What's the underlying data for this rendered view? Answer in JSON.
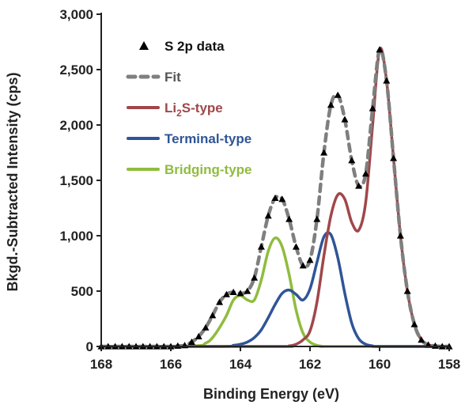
{
  "chart_data": {
    "type": "line",
    "xlabel": "Binding Energy (eV)",
    "ylabel": "Bkgd.-Subtracted Intensity (cps)",
    "xlim": [
      168,
      158
    ],
    "ylim": [
      0,
      3000
    ],
    "x_reversed": true,
    "xticks": [
      168,
      166,
      164,
      162,
      160,
      158
    ],
    "xtick_labels": [
      "168",
      "166",
      "164",
      "162",
      "160",
      "158"
    ],
    "yticks": [
      0,
      500,
      1000,
      1500,
      2000,
      2500,
      3000
    ],
    "ytick_labels": [
      "0",
      "500",
      "1,000",
      "1,500",
      "2,000",
      "2,500",
      "3,000"
    ],
    "grid": false,
    "legend_position": "top-left",
    "legend": [
      {
        "label": "S 2p data",
        "color": "#000000",
        "style": "markers"
      },
      {
        "label": "Fit",
        "color": "#7f7f7f",
        "style": "dashed"
      },
      {
        "label_prefix": "Li",
        "label_sub": "2",
        "label_suffix": "S-type",
        "color": "#a0474a",
        "style": "solid"
      },
      {
        "label": "Terminal-type",
        "color": "#2f5597",
        "style": "solid"
      },
      {
        "label": "Bridging-type",
        "color": "#8fbc3f",
        "style": "solid"
      }
    ],
    "series": [
      {
        "name": "S 2p data",
        "kind": "markers",
        "color": "#000000",
        "x": [
          168,
          167.8,
          167.6,
          167.4,
          167.2,
          167.0,
          166.8,
          166.6,
          166.4,
          166.2,
          166.0,
          165.8,
          165.6,
          165.4,
          165.2,
          165.0,
          164.8,
          164.6,
          164.4,
          164.2,
          164.0,
          163.8,
          163.6,
          163.4,
          163.2,
          163.0,
          162.8,
          162.6,
          162.4,
          162.2,
          162.0,
          161.8,
          161.6,
          161.4,
          161.2,
          161.0,
          160.8,
          160.6,
          160.4,
          160.2,
          160.0,
          159.8,
          159.6,
          159.4,
          159.2,
          159.0,
          158.8,
          158.6,
          158.4,
          158.2,
          158.0
        ],
        "y": [
          0,
          0,
          0,
          0,
          0,
          0,
          0,
          0,
          0,
          0,
          0,
          5,
          10,
          40,
          90,
          170,
          280,
          400,
          470,
          490,
          480,
          500,
          620,
          900,
          1180,
          1340,
          1330,
          1150,
          900,
          730,
          780,
          1150,
          1750,
          2180,
          2270,
          2050,
          1680,
          1450,
          1560,
          2150,
          2680,
          2400,
          1700,
          1000,
          500,
          200,
          60,
          15,
          5,
          0,
          0
        ]
      },
      {
        "name": "Fit",
        "kind": "dashed",
        "color": "#7f7f7f",
        "x": [
          168,
          167.8,
          167.6,
          167.4,
          167.2,
          167.0,
          166.8,
          166.6,
          166.4,
          166.2,
          166.0,
          165.8,
          165.6,
          165.4,
          165.2,
          165.0,
          164.8,
          164.6,
          164.4,
          164.2,
          164.0,
          163.8,
          163.6,
          163.4,
          163.2,
          163.0,
          162.8,
          162.6,
          162.4,
          162.2,
          162.0,
          161.8,
          161.6,
          161.4,
          161.2,
          161.0,
          160.8,
          160.6,
          160.4,
          160.2,
          160.0,
          159.8,
          159.6,
          159.4,
          159.2,
          159.0,
          158.8,
          158.6,
          158.4,
          158.2,
          158.0
        ],
        "y": [
          0,
          0,
          0,
          0,
          0,
          0,
          0,
          0,
          0,
          0,
          0,
          5,
          10,
          40,
          90,
          170,
          280,
          400,
          470,
          490,
          480,
          500,
          620,
          900,
          1180,
          1340,
          1330,
          1150,
          900,
          730,
          780,
          1150,
          1750,
          2180,
          2270,
          2050,
          1680,
          1450,
          1560,
          2150,
          2680,
          2400,
          1700,
          1000,
          500,
          200,
          60,
          15,
          5,
          0,
          0
        ]
      },
      {
        "name": "Li2S-type",
        "kind": "solid",
        "color": "#a0474a",
        "x": [
          168,
          163.0,
          162.6,
          162.4,
          162.2,
          162.0,
          161.8,
          161.6,
          161.4,
          161.2,
          161.0,
          160.8,
          160.6,
          160.4,
          160.2,
          160.0,
          159.8,
          159.6,
          159.4,
          159.2,
          159.0,
          158.8,
          158.6,
          158.4,
          158.0
        ],
        "y": [
          0,
          0,
          5,
          20,
          60,
          140,
          400,
          820,
          1180,
          1370,
          1330,
          1120,
          1050,
          1300,
          2000,
          2680,
          2400,
          1700,
          1000,
          500,
          200,
          60,
          15,
          5,
          0
        ]
      },
      {
        "name": "Terminal-type",
        "kind": "solid",
        "color": "#2f5597",
        "x": [
          168,
          164.6,
          164.2,
          164.0,
          163.8,
          163.6,
          163.4,
          163.2,
          163.0,
          162.8,
          162.6,
          162.4,
          162.2,
          162.0,
          161.8,
          161.6,
          161.4,
          161.2,
          161.0,
          160.8,
          160.6,
          160.4,
          160.2,
          160.0,
          158.0
        ],
        "y": [
          0,
          0,
          10,
          20,
          40,
          80,
          150,
          260,
          380,
          480,
          510,
          470,
          420,
          520,
          760,
          990,
          1010,
          800,
          480,
          210,
          70,
          20,
          5,
          0,
          0
        ]
      },
      {
        "name": "Bridging-type",
        "kind": "solid",
        "color": "#8fbc3f",
        "x": [
          168,
          165.4,
          165.0,
          164.8,
          164.6,
          164.4,
          164.2,
          164.0,
          163.8,
          163.6,
          163.4,
          163.2,
          163.0,
          162.8,
          162.6,
          162.4,
          162.2,
          162.0,
          161.8,
          161.6,
          161.4,
          158.0
        ],
        "y": [
          0,
          5,
          30,
          80,
          170,
          280,
          420,
          460,
          420,
          420,
          600,
          860,
          980,
          900,
          650,
          330,
          120,
          40,
          10,
          0,
          0,
          0
        ]
      }
    ]
  }
}
